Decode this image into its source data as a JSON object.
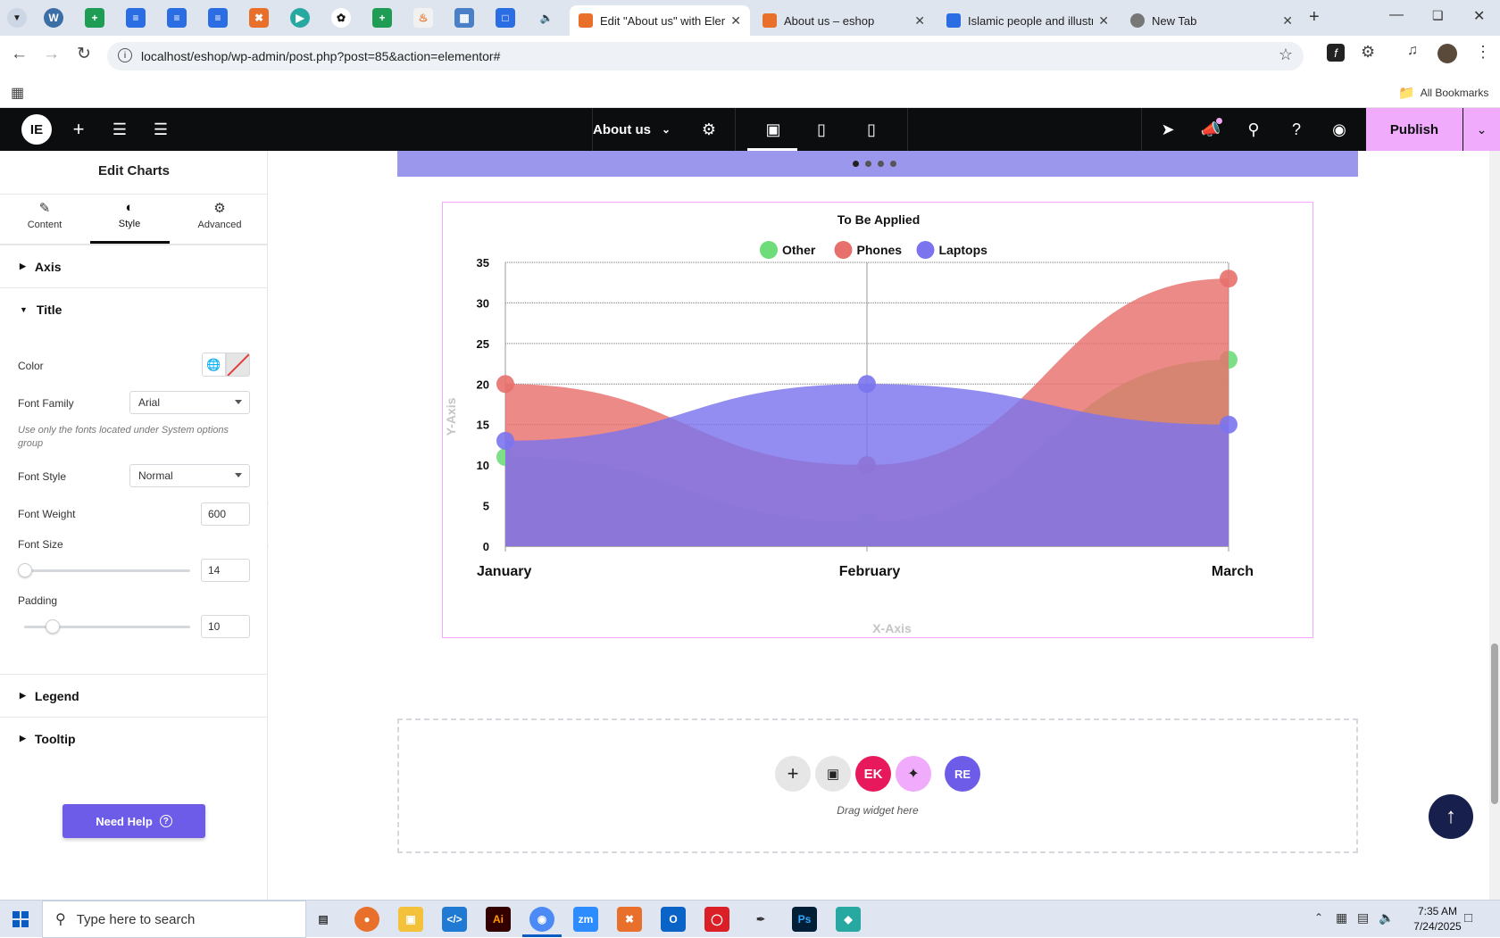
{
  "browser": {
    "tabs": [
      {
        "label": "Edit \"About us\" with Elem",
        "active": true,
        "color": "#e8702a"
      },
      {
        "label": "About us – eshop",
        "active": false,
        "color": "#e8702a"
      },
      {
        "label": "Islamic people and illustr",
        "active": false,
        "color": "#2b6de3"
      },
      {
        "label": "New Tab",
        "active": false,
        "color": "#666666"
      }
    ],
    "url": "localhost/eshop/wp-admin/post.php?post=85&action=elementor#",
    "bookmarks_label": "All Bookmarks"
  },
  "editor": {
    "page_name": "About us",
    "publish_label": "Publish"
  },
  "panel": {
    "title": "Edit Charts",
    "tabs": [
      {
        "label": "Content",
        "icon": "pencil-icon"
      },
      {
        "label": "Style",
        "icon": "half-circle-icon"
      },
      {
        "label": "Advanced",
        "icon": "gear-icon"
      }
    ],
    "sections": {
      "axis": "Axis",
      "title": "Title",
      "legend": "Legend",
      "tooltip": "Tooltip"
    },
    "controls": {
      "color_label": "Color",
      "font_family_label": "Font Family",
      "font_family_value": "Arial",
      "font_note": "Use only the fonts located under System options group",
      "font_style_label": "Font Style",
      "font_style_value": "Normal",
      "font_weight_label": "Font Weight",
      "font_weight_value": "600",
      "font_size_label": "Font Size",
      "font_size_value": "14",
      "padding_label": "Padding",
      "padding_value": "10"
    },
    "help_label": "Need Help"
  },
  "canvas": {
    "drag_label": "Drag widget here"
  },
  "chart_data": {
    "type": "area",
    "title": "To Be Applied",
    "xlabel": "X-Axis",
    "ylabel": "Y-Axis",
    "categories": [
      "January",
      "February",
      "March"
    ],
    "ylim": [
      0,
      35
    ],
    "yticks": [
      0,
      5,
      10,
      15,
      20,
      25,
      30,
      35
    ],
    "grid": true,
    "legend_position": "top",
    "series": [
      {
        "name": "Other",
        "values": [
          11,
          3,
          23
        ],
        "color": "#6fdc7a"
      },
      {
        "name": "Phones",
        "values": [
          20,
          10,
          33
        ],
        "color": "#e8706c"
      },
      {
        "name": "Laptops",
        "values": [
          13,
          20,
          15
        ],
        "color": "#7b74ee"
      }
    ]
  },
  "taskbar": {
    "search_placeholder": "Type here to search",
    "time": "7:35 AM",
    "date": "7/24/2025"
  }
}
